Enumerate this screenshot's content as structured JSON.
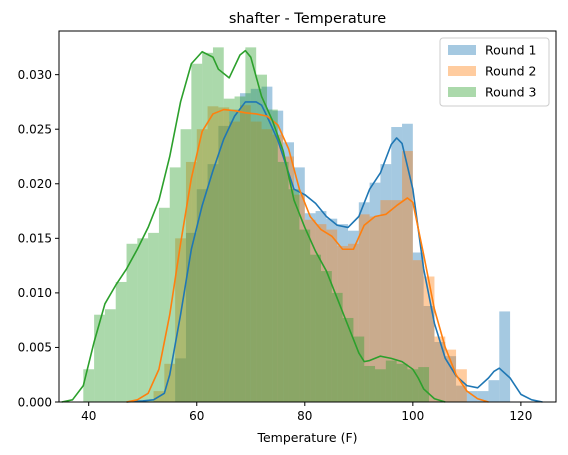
{
  "chart_data": {
    "type": "histogram+kde",
    "title": "shafter - Temperature",
    "xlabel": "Temperature (F)",
    "ylabel": "",
    "xlim": [
      34.5,
      126.5
    ],
    "ylim": [
      0,
      0.034
    ],
    "xticks": [
      "40",
      "60",
      "80",
      "100",
      "120"
    ],
    "xtick_values": [
      40,
      60,
      80,
      100,
      120
    ],
    "yticks": [
      "0.000",
      "0.005",
      "0.010",
      "0.015",
      "0.020",
      "0.025",
      "0.030"
    ],
    "ytick_values": [
      0,
      0.005,
      0.01,
      0.015,
      0.02,
      0.025,
      0.03
    ],
    "legend_position": "top-right",
    "series": [
      {
        "name": "Round 1",
        "color": "#1f77b4",
        "bin_width": 2,
        "bins": [
          [
            56,
            0.004
          ],
          [
            58,
            0.0155
          ],
          [
            60,
            0.0195
          ],
          [
            62,
            0.0218
          ],
          [
            64,
            0.0253
          ],
          [
            66,
            0.0268
          ],
          [
            68,
            0.0283
          ],
          [
            70,
            0.0287
          ],
          [
            72,
            0.0289
          ],
          [
            74,
            0.0267
          ],
          [
            76,
            0.0238
          ],
          [
            78,
            0.0215
          ],
          [
            80,
            0.0173
          ],
          [
            82,
            0.0175
          ],
          [
            84,
            0.0168
          ],
          [
            86,
            0.0163
          ],
          [
            88,
            0.0157
          ],
          [
            90,
            0.0183
          ],
          [
            92,
            0.0201
          ],
          [
            94,
            0.0218
          ],
          [
            96,
            0.0252
          ],
          [
            98,
            0.0255
          ],
          [
            100,
            0.0137
          ],
          [
            102,
            0.0088
          ],
          [
            104,
            0.0055
          ],
          [
            106,
            0.0042
          ],
          [
            108,
            0.0015
          ],
          [
            110,
            0.001
          ],
          [
            112,
            0.001
          ],
          [
            114,
            0.002
          ],
          [
            116,
            0.0083
          ]
        ],
        "kde": [
          [
            47,
            0
          ],
          [
            50,
            0.0001
          ],
          [
            52,
            0.0002
          ],
          [
            54,
            0.0008
          ],
          [
            55,
            0.0025
          ],
          [
            57,
            0.008
          ],
          [
            59,
            0.014
          ],
          [
            61,
            0.018
          ],
          [
            63,
            0.0212
          ],
          [
            65,
            0.0241
          ],
          [
            67,
            0.0262
          ],
          [
            69,
            0.0275
          ],
          [
            71,
            0.0275
          ],
          [
            72,
            0.0272
          ],
          [
            73,
            0.0262
          ],
          [
            75,
            0.024
          ],
          [
            77,
            0.021
          ],
          [
            78,
            0.0195
          ],
          [
            80,
            0.019
          ],
          [
            82,
            0.0182
          ],
          [
            84,
            0.017
          ],
          [
            86,
            0.0162
          ],
          [
            88,
            0.016
          ],
          [
            90,
            0.017
          ],
          [
            92,
            0.0195
          ],
          [
            94,
            0.021
          ],
          [
            96,
            0.0236
          ],
          [
            97,
            0.0242
          ],
          [
            98,
            0.0237
          ],
          [
            100,
            0.0195
          ],
          [
            102,
            0.0122
          ],
          [
            104,
            0.0072
          ],
          [
            106,
            0.004
          ],
          [
            108,
            0.0024
          ],
          [
            110,
            0.0015
          ],
          [
            112,
            0.0013
          ],
          [
            114,
            0.0022
          ],
          [
            115,
            0.0028
          ],
          [
            116,
            0.0031
          ],
          [
            118,
            0.0022
          ],
          [
            120,
            0.0007
          ],
          [
            122,
            0.0002
          ],
          [
            124,
            0
          ]
        ]
      },
      {
        "name": "Round 2",
        "color": "#ff7f0e",
        "bin_width": 2,
        "bins": [
          [
            52,
            0.001
          ],
          [
            54,
            0.0035
          ],
          [
            56,
            0.015
          ],
          [
            58,
            0.022
          ],
          [
            60,
            0.025
          ],
          [
            62,
            0.0271
          ],
          [
            64,
            0.027
          ],
          [
            66,
            0.0257
          ],
          [
            68,
            0.0272
          ],
          [
            70,
            0.0257
          ],
          [
            72,
            0.025
          ],
          [
            74,
            0.0245
          ],
          [
            76,
            0.0225
          ],
          [
            78,
            0.019
          ],
          [
            80,
            0.0167
          ],
          [
            82,
            0.0163
          ],
          [
            84,
            0.0158
          ],
          [
            86,
            0.0143
          ],
          [
            88,
            0.0145
          ],
          [
            90,
            0.0172
          ],
          [
            92,
            0.017
          ],
          [
            94,
            0.0185
          ],
          [
            96,
            0.0185
          ],
          [
            98,
            0.023
          ],
          [
            100,
            0.013
          ],
          [
            102,
            0.0115
          ],
          [
            104,
            0.006
          ],
          [
            106,
            0.0048
          ],
          [
            108,
            0.003
          ]
        ],
        "kde": [
          [
            47,
            0
          ],
          [
            49,
            0.0002
          ],
          [
            51,
            0.0008
          ],
          [
            53,
            0.003
          ],
          [
            55,
            0.008
          ],
          [
            57,
            0.0145
          ],
          [
            59,
            0.0205
          ],
          [
            61,
            0.0248
          ],
          [
            63,
            0.0264
          ],
          [
            65,
            0.0268
          ],
          [
            67,
            0.0267
          ],
          [
            69,
            0.0265
          ],
          [
            71,
            0.0264
          ],
          [
            73,
            0.0262
          ],
          [
            75,
            0.0254
          ],
          [
            77,
            0.0232
          ],
          [
            79,
            0.0195
          ],
          [
            81,
            0.017
          ],
          [
            83,
            0.0158
          ],
          [
            85,
            0.0152
          ],
          [
            87,
            0.014
          ],
          [
            89,
            0.014
          ],
          [
            91,
            0.0162
          ],
          [
            93,
            0.017
          ],
          [
            95,
            0.0172
          ],
          [
            97,
            0.018
          ],
          [
            99,
            0.0187
          ],
          [
            100,
            0.0183
          ],
          [
            102,
            0.0135
          ],
          [
            104,
            0.0085
          ],
          [
            106,
            0.005
          ],
          [
            108,
            0.0025
          ],
          [
            110,
            0.001
          ],
          [
            112,
            0.0003
          ],
          [
            114,
            0
          ]
        ]
      },
      {
        "name": "Round 3",
        "color": "#2ca02c",
        "bin_width": 2,
        "bins": [
          [
            39,
            0.003
          ],
          [
            41,
            0.008
          ],
          [
            43,
            0.0085
          ],
          [
            45,
            0.011
          ],
          [
            47,
            0.0145
          ],
          [
            49,
            0.015
          ],
          [
            51,
            0.0155
          ],
          [
            53,
            0.0178
          ],
          [
            55,
            0.0215
          ],
          [
            57,
            0.025
          ],
          [
            59,
            0.031
          ],
          [
            61,
            0.032
          ],
          [
            63,
            0.0325
          ],
          [
            65,
            0.0278
          ],
          [
            67,
            0.028
          ],
          [
            69,
            0.0325
          ],
          [
            71,
            0.03
          ],
          [
            73,
            0.0268
          ],
          [
            75,
            0.022
          ],
          [
            77,
            0.0195
          ],
          [
            79,
            0.0158
          ],
          [
            81,
            0.0135
          ],
          [
            83,
            0.012
          ],
          [
            85,
            0.01
          ],
          [
            87,
            0.0077
          ],
          [
            89,
            0.006
          ],
          [
            91,
            0.0033
          ],
          [
            93,
            0.003
          ],
          [
            95,
            0.0038
          ],
          [
            97,
            0.0035
          ],
          [
            99,
            0.003
          ],
          [
            101,
            0.0032
          ]
        ],
        "kde": [
          [
            35,
            0
          ],
          [
            37,
            0.0002
          ],
          [
            39,
            0.0015
          ],
          [
            41,
            0.0055
          ],
          [
            43,
            0.009
          ],
          [
            45,
            0.0107
          ],
          [
            47,
            0.0122
          ],
          [
            49,
            0.014
          ],
          [
            51,
            0.016
          ],
          [
            53,
            0.0185
          ],
          [
            55,
            0.0225
          ],
          [
            57,
            0.0275
          ],
          [
            59,
            0.031
          ],
          [
            61,
            0.0321
          ],
          [
            63,
            0.0316
          ],
          [
            64,
            0.0305
          ],
          [
            66,
            0.0297
          ],
          [
            68,
            0.0318
          ],
          [
            69,
            0.0322
          ],
          [
            70,
            0.0316
          ],
          [
            72,
            0.028
          ],
          [
            74,
            0.0258
          ],
          [
            76,
            0.023
          ],
          [
            78,
            0.0185
          ],
          [
            80,
            0.016
          ],
          [
            82,
            0.0138
          ],
          [
            84,
            0.012
          ],
          [
            86,
            0.0095
          ],
          [
            88,
            0.007
          ],
          [
            90,
            0.0045
          ],
          [
            91,
            0.0037
          ],
          [
            92,
            0.0038
          ],
          [
            94,
            0.0042
          ],
          [
            96,
            0.004
          ],
          [
            98,
            0.0037
          ],
          [
            100,
            0.003
          ],
          [
            101,
            0.0022
          ],
          [
            102,
            0.0012
          ],
          [
            104,
            0.0003
          ],
          [
            106,
            0
          ]
        ]
      }
    ]
  }
}
